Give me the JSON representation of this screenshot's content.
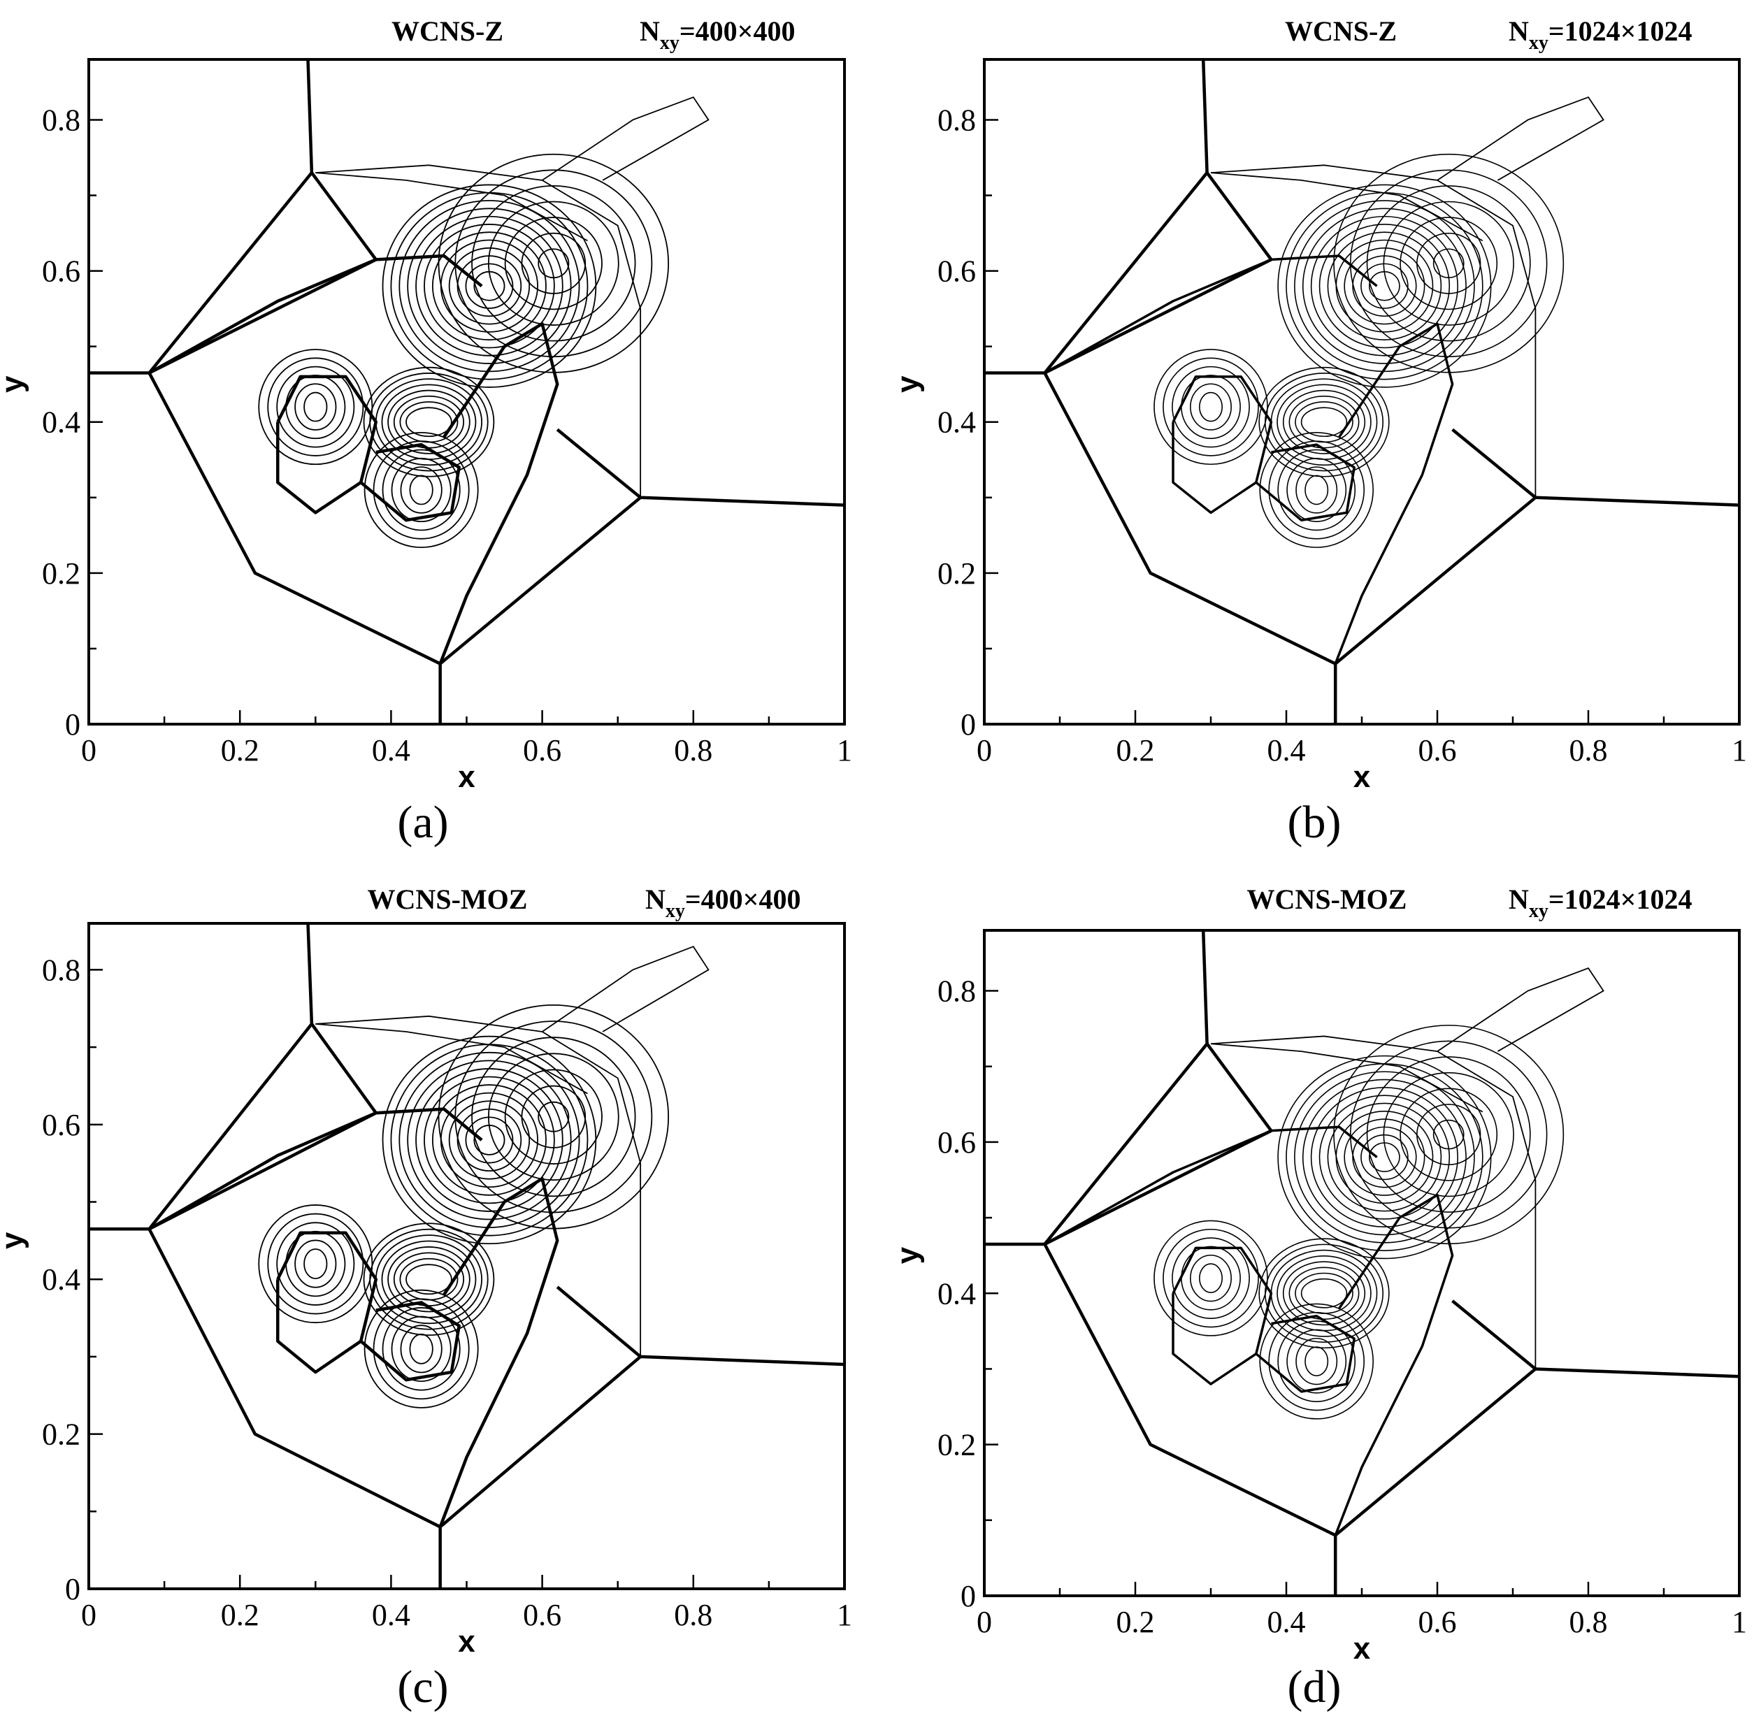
{
  "figure": {
    "panels": [
      {
        "id": "a",
        "label": "(a)",
        "title": "WCNS-Z",
        "res_prefix": "N",
        "res_sub": "xy",
        "res_value": "=400×400"
      },
      {
        "id": "b",
        "label": "(b)",
        "title": "WCNS-Z",
        "res_prefix": "N",
        "res_sub": "xy",
        "res_value": "=1024×1024"
      },
      {
        "id": "c",
        "label": "(c)",
        "title": "WCNS-MOZ",
        "res_prefix": "N",
        "res_sub": "xy",
        "res_value": "=400×400"
      },
      {
        "id": "d",
        "label": "(d)",
        "title": "WCNS-MOZ",
        "res_prefix": "N",
        "res_sub": "xy",
        "res_value": "=1024×1024"
      }
    ]
  },
  "chart_data": [
    {
      "type": "contour",
      "title": "WCNS-Z",
      "xlabel": "x",
      "ylabel": "y",
      "xlim": [
        0,
        1
      ],
      "ylim": [
        0,
        0.88
      ],
      "xticks": [
        "0",
        "0.2",
        "0.4",
        "0.6",
        "0.8",
        "1"
      ],
      "yticks": [
        "0",
        "0.2",
        "0.4",
        "0.6",
        "0.8"
      ],
      "shock_lines": [
        [
          [
            0,
            0.465
          ],
          [
            0.08,
            0.465
          ]
        ],
        [
          [
            0.08,
            0.465
          ],
          [
            0.295,
            0.73
          ]
        ],
        [
          [
            0.295,
            0.73
          ],
          [
            0.29,
            0.88
          ]
        ],
        [
          [
            0.295,
            0.73
          ],
          [
            0.38,
            0.615
          ]
        ],
        [
          [
            0.08,
            0.465
          ],
          [
            0.22,
            0.2
          ],
          [
            0.465,
            0.08
          ]
        ],
        [
          [
            0.465,
            0.08
          ],
          [
            0.465,
            0
          ]
        ],
        [
          [
            0.465,
            0.08
          ],
          [
            0.73,
            0.3
          ]
        ],
        [
          [
            0.73,
            0.3
          ],
          [
            1,
            0.29
          ]
        ],
        [
          [
            0.73,
            0.3
          ],
          [
            0.62,
            0.39
          ]
        ],
        [
          [
            0.08,
            0.465
          ],
          [
            0.38,
            0.615
          ]
        ]
      ]
    },
    {
      "type": "contour",
      "title": "WCNS-Z",
      "xlabel": "x",
      "ylabel": "y",
      "xlim": [
        0,
        1
      ],
      "ylim": [
        0,
        0.88
      ],
      "xticks": [
        "0",
        "0.2",
        "0.4",
        "0.6",
        "0.8",
        "1"
      ],
      "yticks": [
        "0",
        "0.2",
        "0.4",
        "0.6",
        "0.8"
      ],
      "shock_lines": [
        [
          [
            0,
            0.465
          ],
          [
            0.08,
            0.465
          ]
        ],
        [
          [
            0.08,
            0.465
          ],
          [
            0.295,
            0.73
          ]
        ],
        [
          [
            0.295,
            0.73
          ],
          [
            0.29,
            0.88
          ]
        ],
        [
          [
            0.295,
            0.73
          ],
          [
            0.38,
            0.615
          ]
        ],
        [
          [
            0.08,
            0.465
          ],
          [
            0.22,
            0.2
          ],
          [
            0.465,
            0.08
          ]
        ],
        [
          [
            0.465,
            0.08
          ],
          [
            0.465,
            0
          ]
        ],
        [
          [
            0.465,
            0.08
          ],
          [
            0.73,
            0.3
          ]
        ],
        [
          [
            0.73,
            0.3
          ],
          [
            1,
            0.29
          ]
        ],
        [
          [
            0.73,
            0.3
          ],
          [
            0.62,
            0.39
          ]
        ],
        [
          [
            0.08,
            0.465
          ],
          [
            0.38,
            0.615
          ]
        ]
      ]
    },
    {
      "type": "contour",
      "title": "WCNS-MOZ",
      "xlabel": "x",
      "ylabel": "y",
      "xlim": [
        0,
        1
      ],
      "ylim": [
        0,
        0.86
      ],
      "xticks": [
        "0",
        "0.2",
        "0.4",
        "0.6",
        "0.8",
        "1"
      ],
      "yticks": [
        "0",
        "0.2",
        "0.4",
        "0.6",
        "0.8"
      ],
      "shock_lines": [
        [
          [
            0,
            0.465
          ],
          [
            0.08,
            0.465
          ]
        ],
        [
          [
            0.08,
            0.465
          ],
          [
            0.295,
            0.73
          ]
        ],
        [
          [
            0.295,
            0.73
          ],
          [
            0.29,
            0.86
          ]
        ],
        [
          [
            0.295,
            0.73
          ],
          [
            0.38,
            0.615
          ]
        ],
        [
          [
            0.08,
            0.465
          ],
          [
            0.22,
            0.2
          ],
          [
            0.465,
            0.08
          ]
        ],
        [
          [
            0.465,
            0.08
          ],
          [
            0.465,
            0
          ]
        ],
        [
          [
            0.465,
            0.08
          ],
          [
            0.73,
            0.3
          ]
        ],
        [
          [
            0.73,
            0.3
          ],
          [
            1,
            0.29
          ]
        ],
        [
          [
            0.73,
            0.3
          ],
          [
            0.62,
            0.39
          ]
        ],
        [
          [
            0.08,
            0.465
          ],
          [
            0.38,
            0.615
          ]
        ]
      ]
    },
    {
      "type": "contour",
      "title": "WCNS-MOZ",
      "xlabel": "x",
      "ylabel": "y",
      "xlim": [
        0,
        1
      ],
      "ylim": [
        0,
        0.88
      ],
      "xticks": [
        "0",
        "0.2",
        "0.4",
        "0.6",
        "0.8",
        "1"
      ],
      "yticks": [
        "0",
        "0.2",
        "0.4",
        "0.6",
        "0.8"
      ],
      "shock_lines": [
        [
          [
            0,
            0.465
          ],
          [
            0.08,
            0.465
          ]
        ],
        [
          [
            0.08,
            0.465
          ],
          [
            0.295,
            0.73
          ]
        ],
        [
          [
            0.295,
            0.73
          ],
          [
            0.29,
            0.88
          ]
        ],
        [
          [
            0.295,
            0.73
          ],
          [
            0.38,
            0.615
          ]
        ],
        [
          [
            0.08,
            0.465
          ],
          [
            0.22,
            0.2
          ],
          [
            0.465,
            0.08
          ]
        ],
        [
          [
            0.465,
            0.08
          ],
          [
            0.465,
            0
          ]
        ],
        [
          [
            0.465,
            0.08
          ],
          [
            0.73,
            0.3
          ]
        ],
        [
          [
            0.73,
            0.3
          ],
          [
            1,
            0.29
          ]
        ],
        [
          [
            0.73,
            0.3
          ],
          [
            0.62,
            0.39
          ]
        ],
        [
          [
            0.08,
            0.465
          ],
          [
            0.38,
            0.615
          ]
        ]
      ]
    }
  ]
}
